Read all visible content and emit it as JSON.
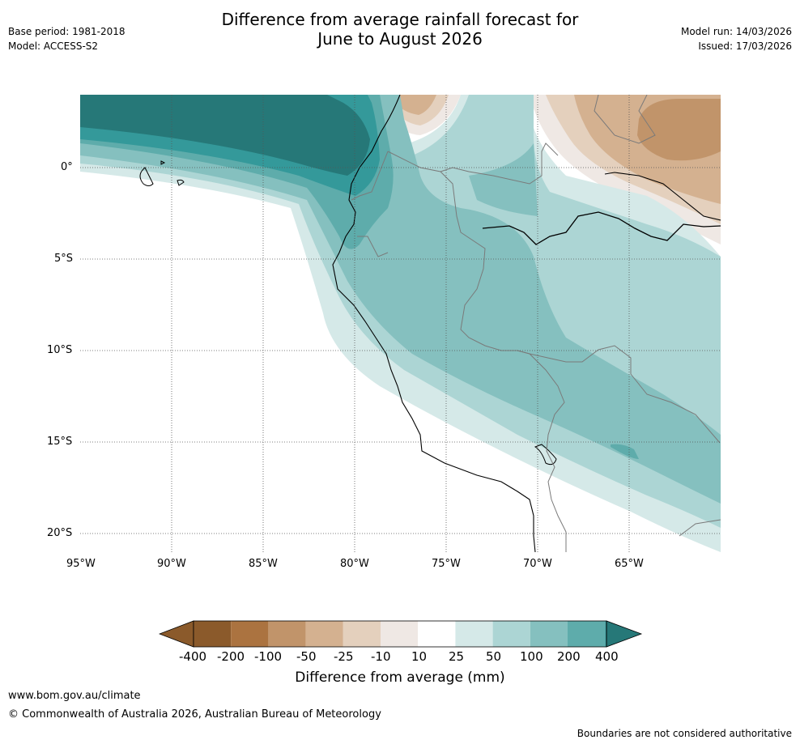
{
  "title_line1": "Difference from average rainfall forecast for",
  "title_line2": "June to August 2026",
  "base_period": "Base period: 1981-2018",
  "model": "Model: ACCESS-S2",
  "model_run": "Model run: 14/03/2026",
  "issued": "Issued: 17/03/2026",
  "map": {
    "lat_labels": [
      "0°",
      "5°S",
      "10°S",
      "15°S",
      "20°S"
    ],
    "lon_labels": [
      "95°W",
      "90°W",
      "85°W",
      "80°W",
      "75°W",
      "70°W",
      "65°W"
    ],
    "colors": {
      "b400": "#8b5a2b",
      "b200": "#ab7340",
      "b100": "#c1946a",
      "b50": "#d4b190",
      "b25": "#e4d0bd",
      "b10": "#efe8e4",
      "neutral": "#ffffff",
      "g10": "#d5e9e8",
      "g25": "#acd5d4",
      "g50": "#85c0bf",
      "g100": "#5eacab",
      "g200": "#34999a",
      "g400": "#267878"
    }
  },
  "colorbar": {
    "labels": [
      "-400",
      "-200",
      "-100",
      "-50",
      "-25",
      "-10",
      "10",
      "25",
      "50",
      "100",
      "200",
      "400"
    ],
    "title": "Difference from average (mm)"
  },
  "footer": {
    "url": "www.bom.gov.au/climate",
    "copyright": "© Commonwealth of Australia 2026, Australian Bureau of Meteorology",
    "disclaimer": "Boundaries are not considered authoritative"
  }
}
